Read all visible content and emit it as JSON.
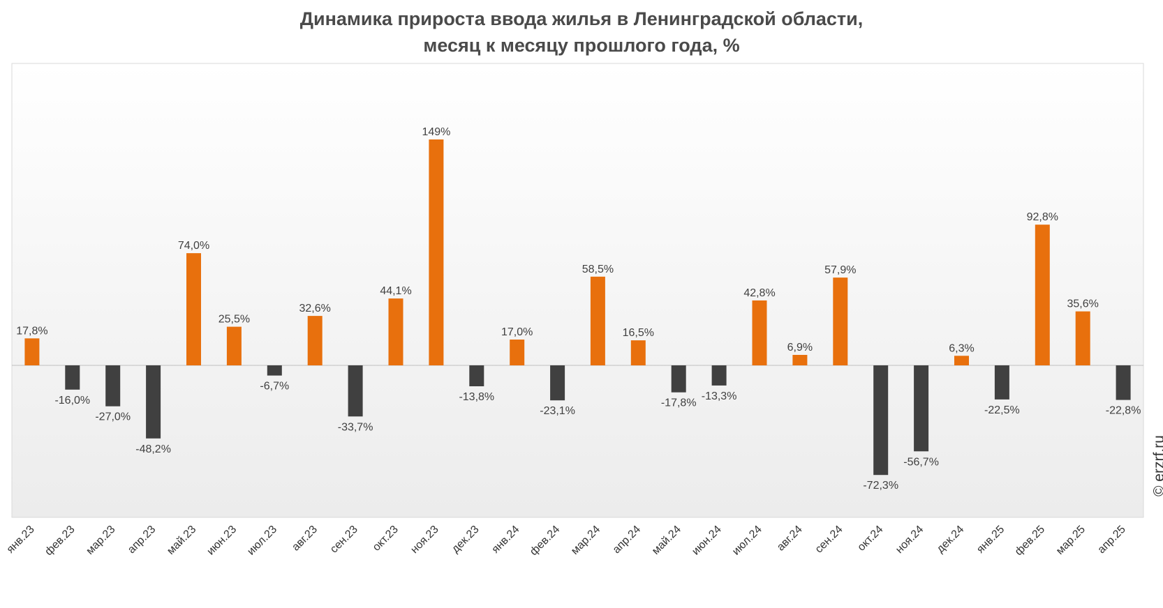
{
  "title_line1": "Динамика прироста ввода жилья в Ленинградской области,",
  "title_line2": "месяц к месяцу прошлого года, %",
  "watermark": "© erzrf.ru",
  "colors": {
    "positive": "#e8700d",
    "negative": "#404040",
    "label": "#404040",
    "tick": "#333333"
  },
  "chart_data": {
    "type": "bar",
    "title": "Динамика прироста ввода жилья в Ленинградской области, месяц к месяцу прошлого года, %",
    "categories": [
      "янв.23",
      "фев.23",
      "мар.23",
      "апр.23",
      "май.23",
      "июн.23",
      "июл.23",
      "авг.23",
      "сен.23",
      "окт.23",
      "ноя.23",
      "дек.23",
      "янв.24",
      "фев.24",
      "мар.24",
      "апр.24",
      "май.24",
      "июн.24",
      "июл.24",
      "авг.24",
      "сен.24",
      "окт.24",
      "ноя.24",
      "дек.24",
      "янв.25",
      "фев.25",
      "мар.25",
      "апр.25"
    ],
    "values": [
      17.8,
      -16.0,
      -27.0,
      -48.2,
      74.0,
      25.5,
      -6.7,
      32.6,
      -33.7,
      44.1,
      149,
      -13.8,
      17.0,
      -23.1,
      58.5,
      16.5,
      -17.8,
      -13.3,
      42.8,
      6.9,
      57.9,
      -72.3,
      -56.7,
      6.3,
      -22.5,
      92.8,
      35.6,
      -22.8
    ],
    "labels": [
      "17,8%",
      "-16,0%",
      "-27,0%",
      "-48,2%",
      "74,0%",
      "25,5%",
      "-6,7%",
      "32,6%",
      "-33,7%",
      "44,1%",
      "149%",
      "-13,8%",
      "17,0%",
      "-23,1%",
      "58,5%",
      "16,5%",
      "-17,8%",
      "-13,3%",
      "42,8%",
      "6,9%",
      "57,9%",
      "-72,3%",
      "-56,7%",
      "6,3%",
      "-22,5%",
      "92,8%",
      "35,6%",
      "-22,8%"
    ],
    "xlabel": "",
    "ylabel": "",
    "ylim": [
      -100,
      200
    ],
    "grid": false,
    "legend": "none"
  }
}
